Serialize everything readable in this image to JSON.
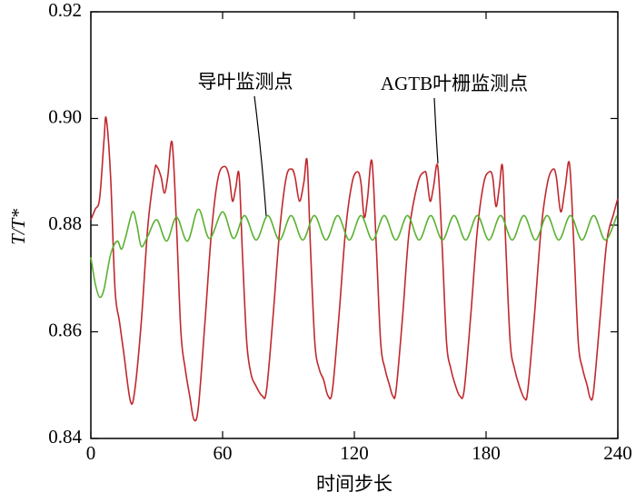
{
  "chart_data": {
    "type": "line",
    "xlabel": "时间步长",
    "ylabel": "T/T*",
    "xlim": [
      0,
      240
    ],
    "xticks": [
      0,
      60,
      120,
      180,
      240
    ],
    "ylim": [
      0.84,
      0.92
    ],
    "yticks": [
      0.84,
      0.86,
      0.88,
      {
        "value": 0.9,
        "label": "0.90"
      },
      0.92
    ],
    "series": [
      {
        "name": "AGTB叶栅监测点",
        "color": "#c0282d",
        "x": [
          0,
          2,
          4,
          6,
          7,
          9,
          11,
          13,
          15,
          18,
          20,
          23,
          26,
          29,
          30,
          32,
          33.5,
          35,
          37,
          39,
          41,
          43,
          45,
          47,
          49,
          52,
          55,
          58,
          61,
          63,
          64.5,
          66,
          67.5,
          69,
          71,
          73,
          75,
          78,
          80,
          83,
          86,
          89,
          91.5,
          93,
          95,
          97,
          98.5,
          100,
          102,
          104,
          106,
          108,
          110,
          113,
          116,
          119,
          121.5,
          123,
          124.5,
          126,
          128,
          130,
          132,
          134,
          136,
          137.5,
          139,
          142,
          145,
          149,
          152,
          153,
          154.5,
          156,
          158,
          160,
          162,
          164,
          166,
          168,
          170,
          173,
          176,
          179,
          181.5,
          183,
          184.5,
          186,
          187.5,
          189,
          191,
          193,
          195,
          197.5,
          199,
          202,
          205,
          208,
          210.5,
          212,
          214,
          216,
          218,
          220,
          222,
          224,
          226,
          227.5,
          229,
          232,
          235,
          238,
          240
        ],
        "values": [
          0.881,
          0.883,
          0.885,
          0.896,
          0.9,
          0.889,
          0.868,
          0.862,
          0.856,
          0.847,
          0.849,
          0.862,
          0.88,
          0.89,
          0.891,
          0.889,
          0.886,
          0.889,
          0.8955,
          0.88,
          0.86,
          0.853,
          0.848,
          0.8435,
          0.846,
          0.862,
          0.879,
          0.889,
          0.891,
          0.889,
          0.8845,
          0.887,
          0.8895,
          0.875,
          0.858,
          0.852,
          0.85,
          0.848,
          0.849,
          0.863,
          0.879,
          0.889,
          0.8905,
          0.889,
          0.8845,
          0.888,
          0.892,
          0.876,
          0.858,
          0.853,
          0.851,
          0.848,
          0.849,
          0.863,
          0.879,
          0.888,
          0.89,
          0.888,
          0.8815,
          0.885,
          0.892,
          0.876,
          0.858,
          0.853,
          0.85,
          0.848,
          0.849,
          0.863,
          0.879,
          0.888,
          0.89,
          0.889,
          0.8845,
          0.887,
          0.891,
          0.876,
          0.858,
          0.853,
          0.85,
          0.848,
          0.849,
          0.863,
          0.879,
          0.888,
          0.89,
          0.889,
          0.8835,
          0.887,
          0.891,
          0.876,
          0.858,
          0.853,
          0.85,
          0.8475,
          0.849,
          0.863,
          0.879,
          0.888,
          0.8905,
          0.889,
          0.8825,
          0.887,
          0.8915,
          0.876,
          0.858,
          0.853,
          0.85,
          0.8475,
          0.849,
          0.863,
          0.877,
          0.882,
          0.885
        ]
      },
      {
        "name": "导叶监测点",
        "color": "#5ab132",
        "x": [
          0,
          2,
          4,
          6,
          9,
          12,
          14,
          16,
          19,
          21,
          23,
          26,
          30,
          34.5,
          39,
          44,
          49,
          54,
          60,
          65,
          70,
          75.3,
          80.6,
          85.9,
          91.2,
          96.5,
          101.8,
          107.1,
          112.4,
          117.7,
          123,
          128.3,
          133.6,
          138.9,
          144.2,
          149.5,
          154.8,
          160.1,
          165.4,
          170.7,
          176,
          181.3,
          186.6,
          191.9,
          197.2,
          202.5,
          207.8,
          213.1,
          218.4,
          223.7,
          229,
          234.3,
          239.6
        ],
        "values": [
          0.874,
          0.869,
          0.8665,
          0.868,
          0.8745,
          0.877,
          0.8755,
          0.878,
          0.8825,
          0.88,
          0.876,
          0.878,
          0.881,
          0.877,
          0.8815,
          0.877,
          0.883,
          0.8775,
          0.8825,
          0.8775,
          0.8818,
          0.8772,
          0.8818,
          0.8772,
          0.8818,
          0.8772,
          0.8818,
          0.8772,
          0.8818,
          0.8772,
          0.8818,
          0.8772,
          0.8818,
          0.8772,
          0.8818,
          0.8772,
          0.8818,
          0.8772,
          0.8818,
          0.8772,
          0.8818,
          0.8772,
          0.8818,
          0.8772,
          0.8818,
          0.8772,
          0.8818,
          0.8772,
          0.8818,
          0.8772,
          0.8818,
          0.8772,
          0.8818
        ]
      }
    ]
  }
}
